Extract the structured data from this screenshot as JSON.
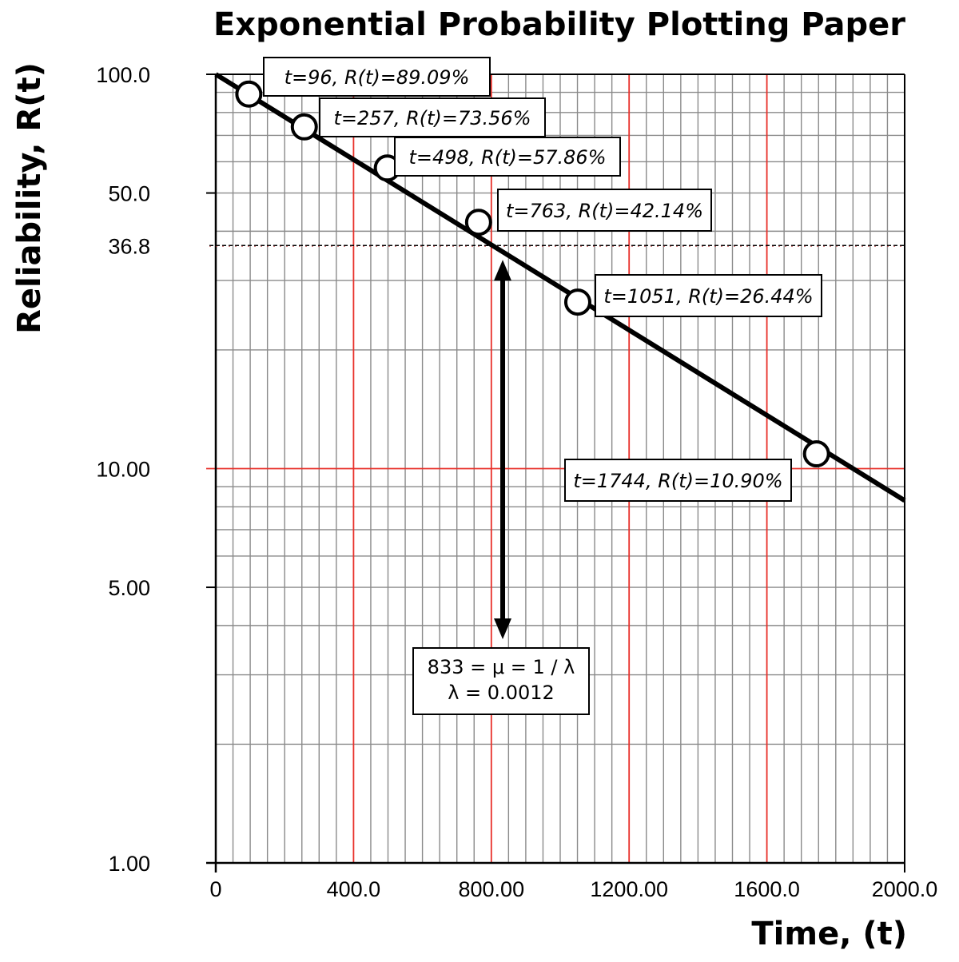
{
  "chart_data": {
    "type": "scatter",
    "title": "Exponential Probability Plotting Paper",
    "xlabel": "Time, (t)",
    "ylabel": "Reliability, R(t)",
    "x_scale": "linear",
    "y_scale": "log",
    "xlim": [
      0,
      2000
    ],
    "ylim": [
      1,
      100
    ],
    "x_ticks": [
      {
        "value": 0,
        "label": "0"
      },
      {
        "value": 400,
        "label": "400.0"
      },
      {
        "value": 800,
        "label": "800.00"
      },
      {
        "value": 1200,
        "label": "1200.00"
      },
      {
        "value": 1600,
        "label": "1600.0"
      },
      {
        "value": 2000,
        "label": "2000.0"
      }
    ],
    "y_ticks": [
      {
        "value": 100,
        "label": "100.0"
      },
      {
        "value": 50,
        "label": "50.0"
      },
      {
        "value": 36.8,
        "label": "36.8"
      },
      {
        "value": 10,
        "label": "10.00"
      },
      {
        "value": 5,
        "label": "5.00"
      },
      {
        "value": 1,
        "label": "1.00"
      }
    ],
    "grid": true,
    "points": [
      {
        "t": 96,
        "R": 89.09,
        "label": "t=96, R(t)=89.09%"
      },
      {
        "t": 257,
        "R": 73.56,
        "label": "t=257, R(t)=73.56%"
      },
      {
        "t": 498,
        "R": 57.86,
        "label": "t=498, R(t)=57.86%"
      },
      {
        "t": 763,
        "R": 42.14,
        "label": "t=763, R(t)=42.14%"
      },
      {
        "t": 1051,
        "R": 26.44,
        "label": "t=1051, R(t)=26.44%"
      },
      {
        "t": 1744,
        "R": 10.9,
        "label": "t=1744, R(t)=10.90%"
      }
    ],
    "fit_line": {
      "t": [
        0,
        2000
      ],
      "R": [
        100,
        8.3
      ]
    },
    "reference_line": {
      "R": 36.8
    },
    "mean_marker": {
      "t": 833
    },
    "note_lines": [
      "833 = μ = 1 / λ",
      "λ = 0.0012"
    ]
  },
  "colors": {
    "major_grid": "#e8302a",
    "minor_grid": "#8a8a8a",
    "data": "#000000"
  }
}
